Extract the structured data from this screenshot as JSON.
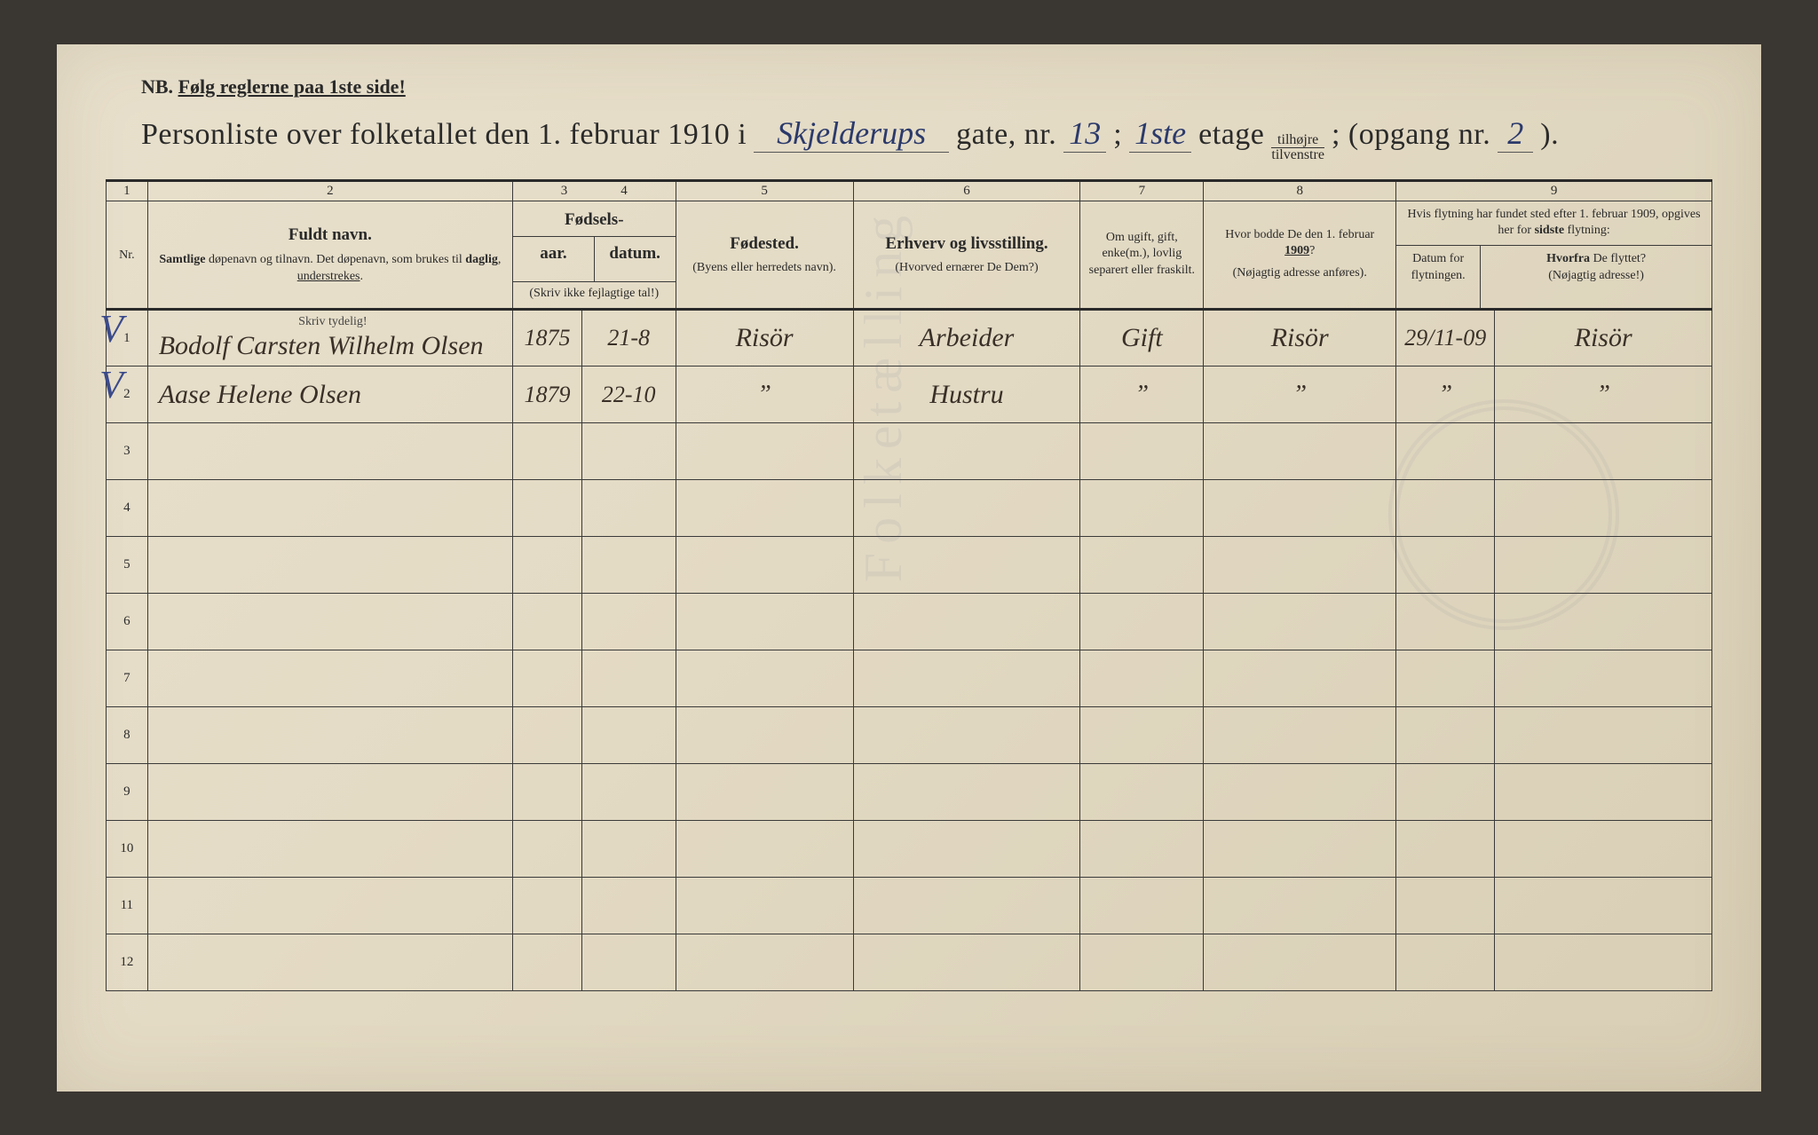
{
  "colors": {
    "page_bg_start": "#e8e0cc",
    "page_bg_end": "#d8ceb5",
    "ink": "#2a2a2a",
    "hand_blue": "#2b3a6b",
    "hand_brown": "#3a3028",
    "border": "#3a3a3a"
  },
  "nb": {
    "prefix": "NB.",
    "text": "Følg reglerne paa 1ste side!"
  },
  "title": {
    "t1": "Personliste over folketallet den 1. februar 1910 i",
    "street": "Skjelderups",
    "t2": "gate, nr.",
    "nr": "13",
    "semi": ";",
    "floor": "1ste",
    "t3": "etage",
    "side_top": "tilhøjre",
    "side_bot": "tilvenstre",
    "t4": "; (opgang nr.",
    "opgang": "2",
    "t5": ")."
  },
  "columns": {
    "c1": "1",
    "c2": "2",
    "c3": "3",
    "c4": "4",
    "c5": "5",
    "c6": "6",
    "c7": "7",
    "c8": "8",
    "c9": "9",
    "nr": "Nr.",
    "name_main": "Fuldt navn.",
    "name_sub": "Samtlige døpenavn og tilnavn. Det døpenavn, som brukes til daglig, understrekes.",
    "skriv": "Skriv tydelig!",
    "birth_top": "Fødsels-",
    "birth_year": "aar.",
    "birth_date": "datum.",
    "birth_note": "(Skriv ikke fejlagtige tal!)",
    "place_main": "Fødested.",
    "place_sub": "(Byens eller herredets navn).",
    "occ_main": "Erhverv og livsstilling.",
    "occ_sub": "(Hvorved ernærer De Dem?)",
    "marital": "Om ugift, gift, enke(m.), lovlig separert eller fraskilt.",
    "addr_main": "Hvor bodde De den 1. februar 1909?",
    "addr_sub": "(Nøjagtig adresse anføres).",
    "move_top": "Hvis flytning har fundet sted efter 1. februar 1909, opgives her for sidste flytning:",
    "move_date": "Datum for flytningen.",
    "move_from": "Hvorfra De flyttet? (Nøjagtig adresse!)"
  },
  "rows": [
    {
      "nr": "1",
      "check": "V",
      "name": "Bodolf Carsten Wilhelm Olsen",
      "year": "1875",
      "date": "21-8",
      "place": "Risör",
      "occ": "Arbeider",
      "marital": "Gift",
      "addr": "Risör",
      "mdate": "29/11-09",
      "mfrom": "Risör"
    },
    {
      "nr": "2",
      "check": "V",
      "name": "Aase Helene Olsen",
      "year": "1879",
      "date": "22-10",
      "place": "”",
      "occ": "Hustru",
      "marital": "”",
      "addr": "”",
      "mdate": "”",
      "mfrom": "”"
    },
    {
      "nr": "3"
    },
    {
      "nr": "4"
    },
    {
      "nr": "5"
    },
    {
      "nr": "6"
    },
    {
      "nr": "7"
    },
    {
      "nr": "8"
    },
    {
      "nr": "9"
    },
    {
      "nr": "10"
    },
    {
      "nr": "11"
    },
    {
      "nr": "12"
    }
  ]
}
